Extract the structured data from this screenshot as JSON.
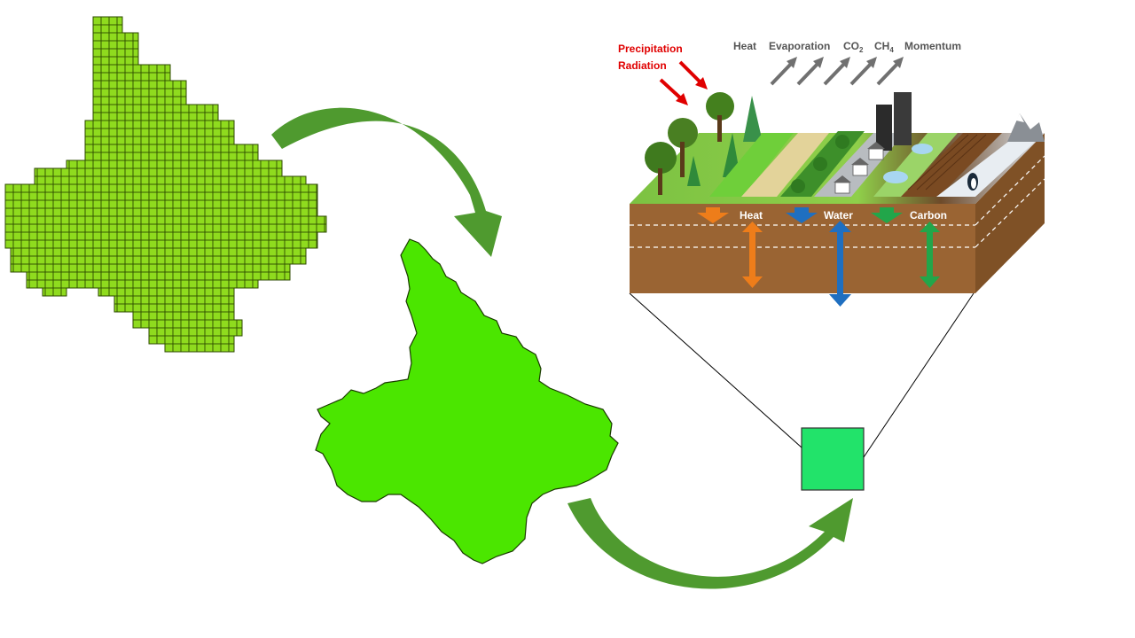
{
  "labels": {
    "precipitation": "Precipitation",
    "radiation": "Radiation",
    "heat_top": "Heat",
    "evaporation": "Evaporation",
    "co2_base": "CO",
    "co2_sub": "2",
    "ch4_base": "CH",
    "ch4_sub": "4",
    "momentum": "Momentum",
    "heat_soil": "Heat",
    "water_soil": "Water",
    "carbon_soil": "Carbon"
  },
  "colors": {
    "grid_fill": "#8fdb1e",
    "basin_fill": "#4be600",
    "cell_fill": "#22e36a",
    "curve_arrow": "#4f9a2f",
    "soil": "#9a6433",
    "soil_side": "#7f5126",
    "heat": "#ee7d1a",
    "water": "#1f6fc0",
    "carbon": "#22a64a",
    "incoming": "#e00000",
    "outgoing": "#707070"
  },
  "icons": [
    "forest-icon",
    "grass-icon",
    "crop-icon",
    "shrub-icon",
    "house-icon",
    "skyscraper-icon",
    "wetland-icon",
    "farmland-icon",
    "snow-mountain-icon",
    "penguin-icon"
  ]
}
